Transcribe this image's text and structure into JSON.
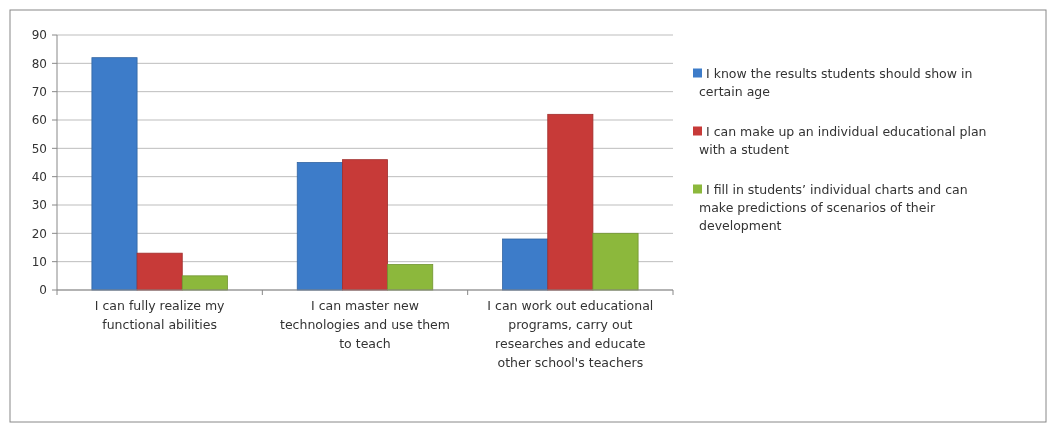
{
  "chart_data": {
    "type": "bar",
    "categories": [
      "I can fully realize my functional abilities",
      "I can master new technologies and use them to teach",
      "I can work out educational programs, carry out researches and educate other school's teachers"
    ],
    "series": [
      {
        "name": "I know the results students should show in certain age",
        "color": "#3d7cc9",
        "values": [
          82,
          45,
          18
        ]
      },
      {
        "name": "I can make up an individual educational plan with a student",
        "color": "#c73a38",
        "values": [
          13,
          46,
          62
        ]
      },
      {
        "name": "I fill in students’ individual charts and can make predictions of scenarios of their development",
        "color": "#8cb83c",
        "values": [
          5,
          9,
          20
        ]
      }
    ],
    "ylim": [
      0,
      90
    ],
    "yticks": [
      0,
      10,
      20,
      30,
      40,
      50,
      60,
      70,
      80,
      90
    ],
    "grid": "y",
    "legend": "right"
  }
}
